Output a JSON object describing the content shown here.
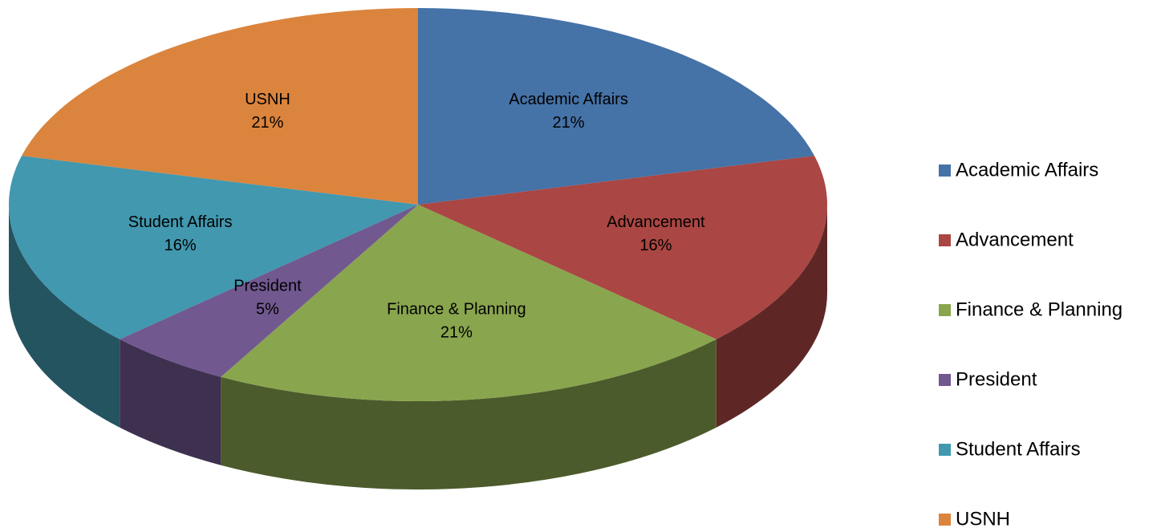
{
  "chart_data": {
    "type": "pie",
    "categories": [
      "Academic Affairs",
      "Advancement",
      "Finance & Planning",
      "President",
      "Student Affairs",
      "USNH"
    ],
    "values": [
      21,
      16,
      21,
      5,
      16,
      21
    ],
    "value_labels": [
      "21%",
      "16%",
      "21%",
      "5%",
      "16%",
      "21%"
    ],
    "colors": [
      "#4572a7",
      "#aa4643",
      "#89a54e",
      "#71588f",
      "#4198af",
      "#db843d"
    ],
    "legend": "right"
  }
}
